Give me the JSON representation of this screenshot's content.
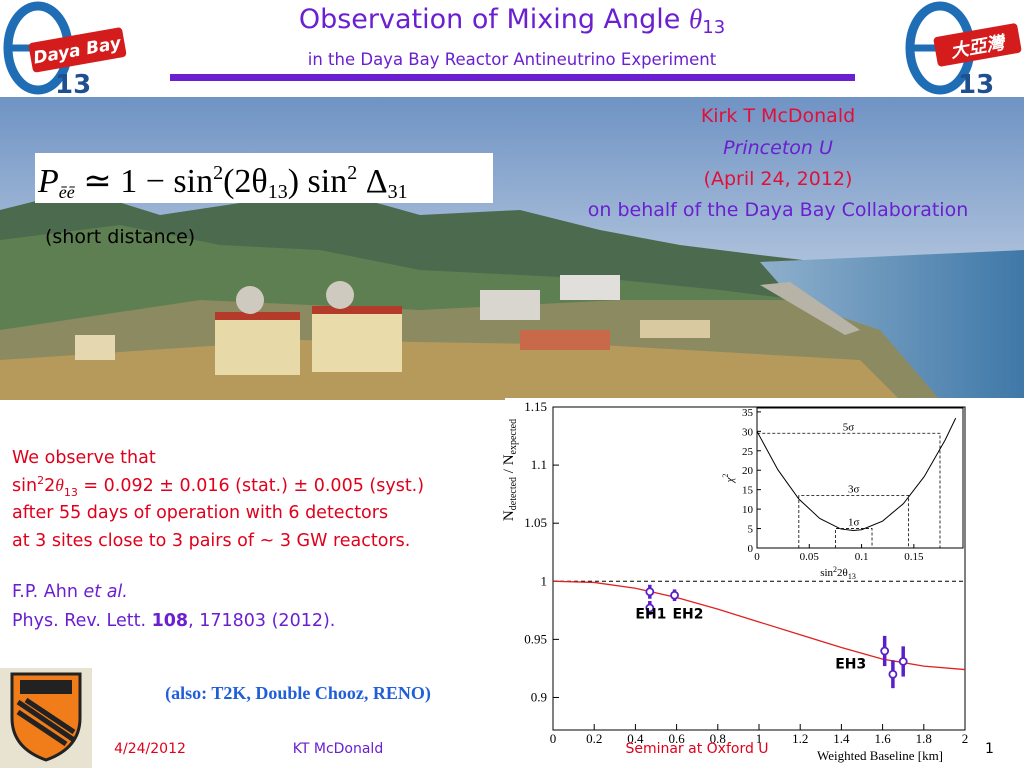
{
  "header": {
    "title": [
      "Observation of Mixing Angle ",
      "θ",
      "13"
    ],
    "subtitle": "in the Daya Bay Reactor Antineutrino Experiment",
    "logo_left": [
      "Daya Bay",
      "13"
    ],
    "logo_right": [
      "大亞灣",
      "13"
    ]
  },
  "author": [
    "Kirk T McDonald",
    "Princeton U",
    "(April 24, 2012)",
    "on behalf of the Daya Bay Collaboration"
  ],
  "formula": [
    "P",
    "ēē",
    " ≃ 1 − sin",
    "2",
    "(2θ",
    "13",
    ") sin",
    "2",
    " Δ",
    "31"
  ],
  "formula_note": "(short distance)",
  "body": {
    "line1": "We observe that",
    "line2": [
      "sin",
      "2",
      "2",
      "θ",
      "13",
      " = 0.092 ± 0.016 (stat.) ± 0.005 (syst.)"
    ],
    "line3": "after 55 days of operation with 6 detectors",
    "line4": "at 3 sites close to 3 pairs of ~ 3 GW reactors.",
    "ref1": [
      "F.P. Ahn ",
      "et al."
    ],
    "ref2": [
      "Phys. Rev. Lett. ",
      "108",
      ", 171803 (2012)."
    ],
    "also": "(also: T2K, Double Chooz, RENO)"
  },
  "footer": {
    "date": "4/24/2012",
    "author": "KT McDonald",
    "venue": "Seminar at Oxford U",
    "page": "1"
  },
  "plot": {
    "ylabel": [
      "N",
      "detected",
      " / N",
      "expected"
    ],
    "xlabel": "Weighted Baseline [km]",
    "xlim": [
      0,
      2
    ],
    "xticks": [
      0,
      0.2,
      0.4,
      0.6,
      0.8,
      1,
      1.2,
      1.4,
      1.6,
      1.8,
      2
    ],
    "ylim": [
      0.872,
      1.15
    ],
    "yticks": [
      0.9,
      0.95,
      1,
      1.05,
      1.1,
      1.15
    ],
    "reference": 1,
    "curve": {
      "x": [
        0,
        0.2,
        0.4,
        0.6,
        0.8,
        1,
        1.2,
        1.4,
        1.6,
        1.8,
        2
      ],
      "y": [
        1,
        0.999,
        0.994,
        0.986,
        0.976,
        0.965,
        0.954,
        0.943,
        0.933,
        0.927,
        0.924
      ]
    },
    "points": [
      {
        "x": 0.47,
        "y": 0.991,
        "err": 0.006
      },
      {
        "x": 0.47,
        "y": 0.977,
        "err": 0.006
      },
      {
        "x": 0.59,
        "y": 0.988,
        "err": 0.005
      },
      {
        "x": 1.61,
        "y": 0.94,
        "err": 0.013
      },
      {
        "x": 1.65,
        "y": 0.92,
        "err": 0.012
      },
      {
        "x": 1.7,
        "y": 0.931,
        "err": 0.013
      }
    ],
    "labels": [
      {
        "text": "EH1",
        "x": 0.4,
        "y": 0.968
      },
      {
        "text": "EH2",
        "x": 0.58,
        "y": 0.968
      },
      {
        "text": "EH3",
        "x": 1.37,
        "y": 0.925
      }
    ],
    "inset": {
      "ylabel": [
        "χ",
        "2"
      ],
      "xlabel": [
        "sin",
        "2",
        "2θ",
        "13"
      ],
      "xlim": [
        0,
        0.197
      ],
      "xticks": [
        0,
        0.05,
        0.1,
        0.15
      ],
      "ylim": [
        0,
        36
      ],
      "yticks": [
        0,
        5,
        10,
        15,
        20,
        25,
        30,
        35
      ],
      "curve": {
        "x": [
          0,
          0.02,
          0.04,
          0.06,
          0.08,
          0.092,
          0.1,
          0.12,
          0.14,
          0.16,
          0.18,
          0.19
        ],
        "y": [
          30,
          20.1,
          12.6,
          7.6,
          4.9,
          4.5,
          4.7,
          6.9,
          11.4,
          18.4,
          27.8,
          33.4
        ]
      },
      "sigma": [
        {
          "label": "1σ",
          "level": 5,
          "range": [
            0.075,
            0.11
          ]
        },
        {
          "label": "3σ",
          "level": 13.5,
          "range": [
            0.04,
            0.145
          ]
        },
        {
          "label": "5σ",
          "level": 29.5,
          "range": [
            0,
            0.175
          ]
        }
      ]
    }
  }
}
